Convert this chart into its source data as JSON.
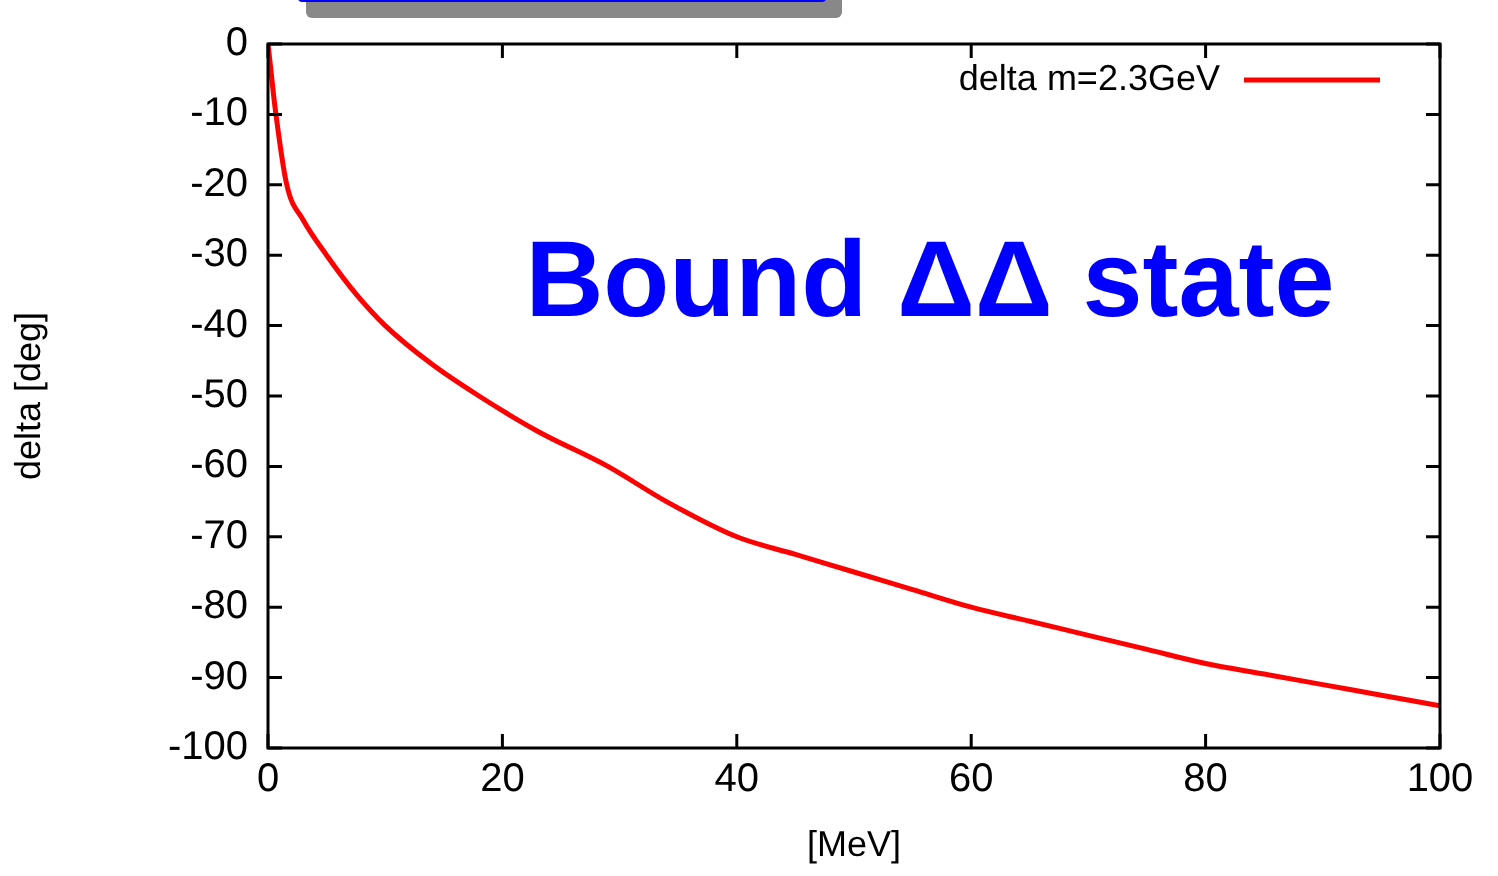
{
  "chart_data": {
    "type": "line",
    "xlabel": "[MeV]",
    "ylabel": "delta [deg]",
    "x": [
      0,
      0.2,
      0.6,
      1.6,
      3,
      5,
      7.5,
      10,
      14,
      18,
      23,
      29,
      34,
      40,
      45,
      50,
      55,
      60,
      65,
      70,
      75,
      80,
      85,
      90,
      95,
      100
    ],
    "series": [
      {
        "name": "delta m=2.3GeV",
        "color": "#ff0000",
        "values": [
          0,
          -3,
          -9,
          -20,
          -25,
          -30,
          -35.5,
          -40,
          -45.5,
          -50,
          -55,
          -60,
          -65,
          -70,
          -72.5,
          -75,
          -77.5,
          -80,
          -82,
          -84,
          -86,
          -88,
          -89.5,
          -91,
          -92.5,
          -94
        ]
      }
    ],
    "xlim": [
      0,
      100
    ],
    "xticks": [
      0,
      20,
      40,
      60,
      80,
      100
    ],
    "ylim": [
      -100,
      0
    ],
    "yticks": [
      -100,
      -90,
      -80,
      -70,
      -60,
      -50,
      -40,
      -30,
      -20,
      -10,
      0
    ],
    "grid": false,
    "legend": "top right",
    "marker": "none",
    "line_style": "solid",
    "annotations": [
      "Bound ΔΔ state"
    ]
  }
}
